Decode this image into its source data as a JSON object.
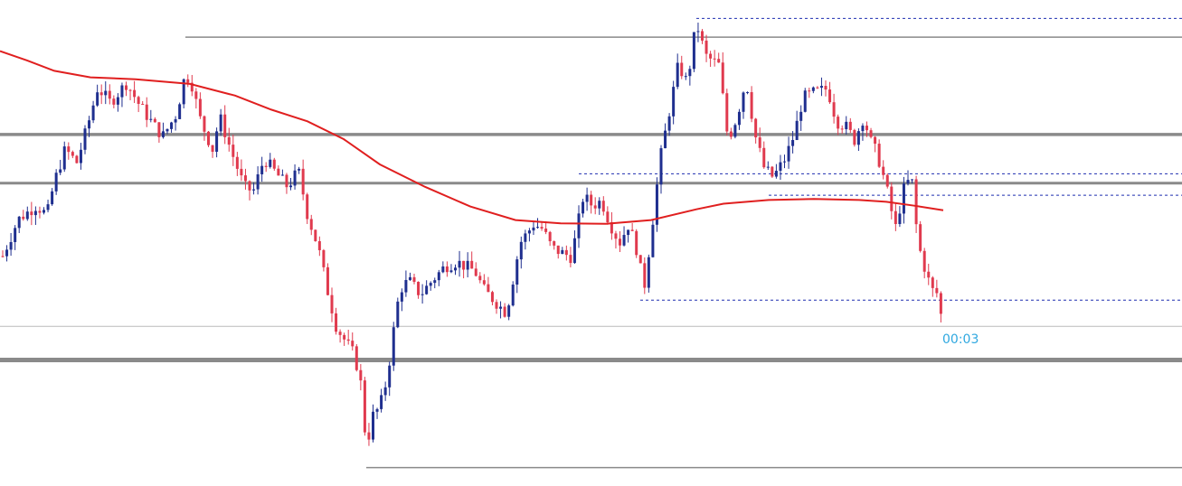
{
  "chart_data": {
    "type": "candlestick",
    "ylim": [
      0,
      1000
    ],
    "grid": false,
    "colors": {
      "bull": "#1f2f8f",
      "bear": "#e03a4e",
      "ma": "#e01f1f",
      "level": "#8a8a8a",
      "dotted": "#1f2fb0",
      "timer": "#2fa8e0",
      "thin": "#bcbcbc"
    },
    "timer_label": "00:03",
    "moving_average": [
      [
        0,
        910
      ],
      [
        30,
        890
      ],
      [
        60,
        868
      ],
      [
        100,
        854
      ],
      [
        150,
        850
      ],
      [
        210,
        840
      ],
      [
        260,
        815
      ],
      [
        300,
        785
      ],
      [
        340,
        760
      ],
      [
        380,
        722
      ],
      [
        420,
        668
      ],
      [
        470,
        620
      ],
      [
        520,
        578
      ],
      [
        570,
        549
      ],
      [
        620,
        542
      ],
      [
        670,
        541
      ],
      [
        720,
        549
      ],
      [
        770,
        572
      ],
      [
        800,
        584
      ],
      [
        850,
        592
      ],
      [
        900,
        594
      ],
      [
        950,
        592
      ],
      [
        980,
        588
      ],
      [
        1010,
        580
      ],
      [
        1043,
        570
      ]
    ],
    "levels": [
      {
        "price": 940,
        "from": 205,
        "to": 1307,
        "style": "solid",
        "weight": 1.5
      },
      {
        "price": 732,
        "from": 0,
        "to": 1307,
        "style": "solid",
        "weight": 3.5
      },
      {
        "price": 628,
        "from": 0,
        "to": 1307,
        "style": "solid",
        "weight": 3
      },
      {
        "price": 322,
        "from": 0,
        "to": 1307,
        "style": "thin",
        "weight": 1
      },
      {
        "price": 250,
        "from": 0,
        "to": 1307,
        "style": "solid",
        "weight": 5
      },
      {
        "price": 20,
        "from": 405,
        "to": 1307,
        "style": "solid",
        "weight": 1.5
      },
      {
        "price": 980,
        "from": 770,
        "to": 1307,
        "style": "dotted",
        "weight": 1
      },
      {
        "price": 648,
        "from": 640,
        "to": 1307,
        "style": "dotted",
        "weight": 1
      },
      {
        "price": 602,
        "from": 850,
        "to": 1307,
        "style": "dotted",
        "weight": 1
      },
      {
        "price": 378,
        "from": 708,
        "to": 1307,
        "style": "dotted",
        "weight": 1
      }
    ],
    "anchors": [
      [
        3,
        472
      ],
      [
        20,
        550
      ],
      [
        40,
        580
      ],
      [
        52,
        560
      ],
      [
        60,
        630
      ],
      [
        72,
        700
      ],
      [
        85,
        672
      ],
      [
        100,
        772
      ],
      [
        108,
        832
      ],
      [
        122,
        800
      ],
      [
        140,
        842
      ],
      [
        155,
        792
      ],
      [
        170,
        752
      ],
      [
        180,
        728
      ],
      [
        195,
        775
      ],
      [
        205,
        862
      ],
      [
        212,
        840
      ],
      [
        222,
        760
      ],
      [
        235,
        700
      ],
      [
        243,
        770
      ],
      [
        255,
        700
      ],
      [
        270,
        620
      ],
      [
        280,
        610
      ],
      [
        292,
        680
      ],
      [
        305,
        650
      ],
      [
        318,
        620
      ],
      [
        330,
        655
      ],
      [
        340,
        560
      ],
      [
        352,
        490
      ],
      [
        362,
        400
      ],
      [
        372,
        320
      ],
      [
        382,
        290
      ],
      [
        392,
        260
      ],
      [
        400,
        190
      ],
      [
        405,
        60
      ],
      [
        412,
        130
      ],
      [
        420,
        150
      ],
      [
        428,
        210
      ],
      [
        435,
        310
      ],
      [
        442,
        400
      ],
      [
        452,
        420
      ],
      [
        465,
        390
      ],
      [
        478,
        420
      ],
      [
        492,
        450
      ],
      [
        505,
        460
      ],
      [
        515,
        450
      ],
      [
        525,
        440
      ],
      [
        535,
        400
      ],
      [
        550,
        370
      ],
      [
        560,
        350
      ],
      [
        567,
        420
      ],
      [
        575,
        500
      ],
      [
        590,
        540
      ],
      [
        600,
        530
      ],
      [
        610,
        490
      ],
      [
        620,
        480
      ],
      [
        632,
        470
      ],
      [
        645,
        600
      ],
      [
        655,
        580
      ],
      [
        665,
        590
      ],
      [
        675,
        540
      ],
      [
        685,
        500
      ],
      [
        695,
        540
      ],
      [
        705,
        480
      ],
      [
        712,
        400
      ],
      [
        720,
        520
      ],
      [
        730,
        680
      ],
      [
        740,
        780
      ],
      [
        750,
        880
      ],
      [
        760,
        842
      ],
      [
        770,
        972
      ],
      [
        780,
        900
      ],
      [
        795,
        880
      ],
      [
        805,
        720
      ],
      [
        815,
        770
      ],
      [
        825,
        850
      ],
      [
        835,
        730
      ],
      [
        845,
        660
      ],
      [
        855,
        640
      ],
      [
        868,
        680
      ],
      [
        878,
        730
      ],
      [
        888,
        810
      ],
      [
        898,
        820
      ],
      [
        915,
        830
      ],
      [
        925,
        760
      ],
      [
        935,
        750
      ],
      [
        945,
        720
      ],
      [
        955,
        770
      ],
      [
        962,
        720
      ],
      [
        970,
        690
      ],
      [
        980,
        620
      ],
      [
        990,
        530
      ],
      [
        1000,
        620
      ],
      [
        1008,
        640
      ],
      [
        1015,
        500
      ],
      [
        1022,
        450
      ],
      [
        1030,
        400
      ],
      [
        1038,
        390
      ],
      [
        1043,
        300
      ]
    ]
  }
}
